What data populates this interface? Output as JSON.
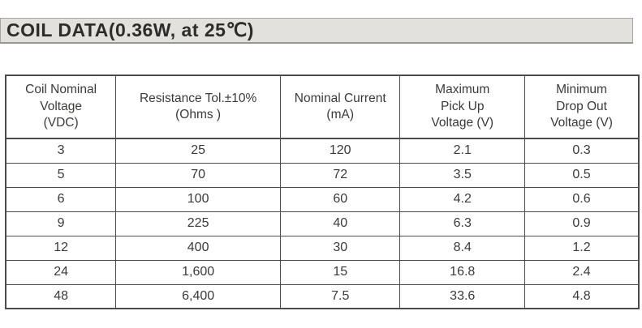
{
  "header": {
    "title": "COIL DATA(0.36W, at 25℃)"
  },
  "table": {
    "headers": [
      "Coil Nominal\nVoltage\n(VDC)",
      "Resistance Tol.±10%\n(Ohms )",
      "Nominal Current\n(mA)",
      "Maximum\nPick Up\nVoltage (V)",
      "Minimum\nDrop Out\nVoltage (V)"
    ],
    "rows": [
      [
        "3",
        "25",
        "120",
        "2.1",
        "0.3"
      ],
      [
        "5",
        "70",
        "72",
        "3.5",
        "0.5"
      ],
      [
        "6",
        "100",
        "60",
        "4.2",
        "0.6"
      ],
      [
        "9",
        "225",
        "40",
        "6.3",
        "0.9"
      ],
      [
        "12",
        "400",
        "30",
        "8.4",
        "1.2"
      ],
      [
        "24",
        "1,600",
        "15",
        "16.8",
        "2.4"
      ],
      [
        "48",
        "6,400",
        "7.5",
        "33.6",
        "4.8"
      ]
    ]
  },
  "colors": {
    "title_bar_bg": "#e3e1de",
    "title_bar_border": "#a9a6a1",
    "table_border": "#4d4b49",
    "text": "#3c3a38"
  }
}
